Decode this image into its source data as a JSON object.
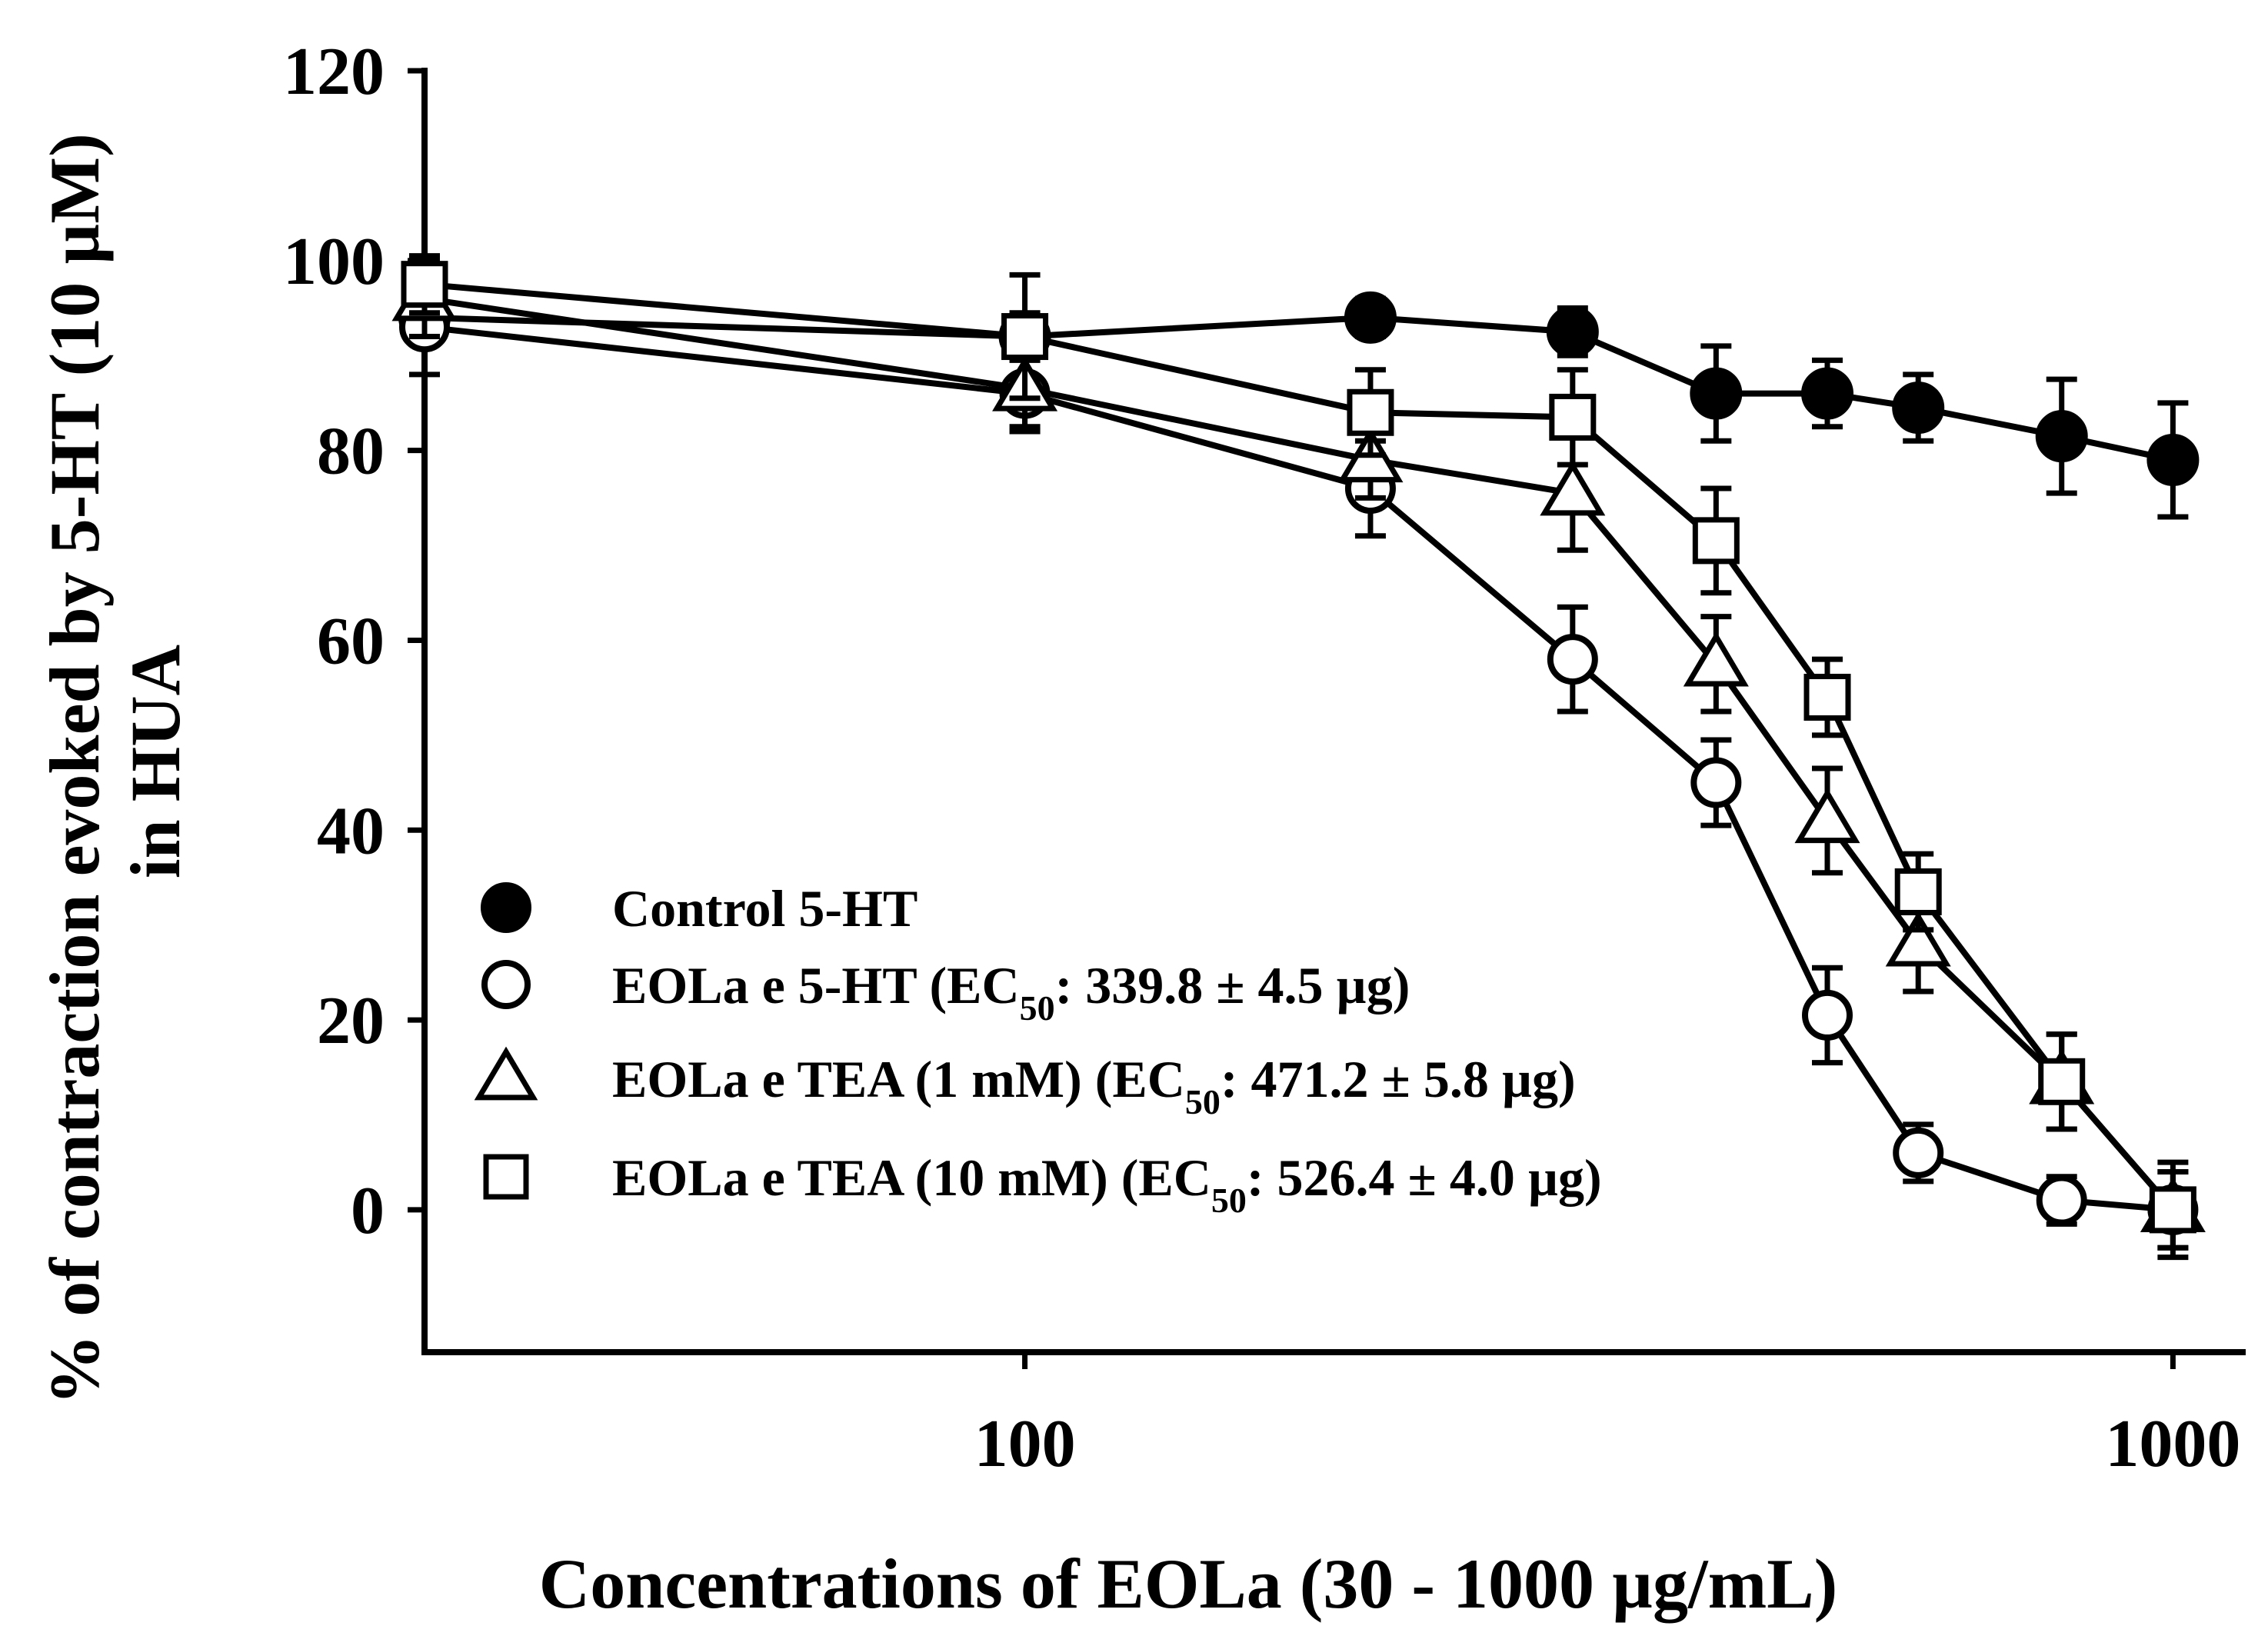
{
  "chart_data": {
    "type": "line",
    "xscale": "log",
    "xlabel": "Concentrations of EOLa (30 - 1000 µg/mL)",
    "ylabel_line1": "% of contraction evoked by 5-HT (10 µM)",
    "ylabel_line2": "in HUA",
    "xlim": [
      30,
      1150
    ],
    "ylim": [
      -15,
      120
    ],
    "xticks": [
      100,
      1000
    ],
    "xtick_labels": [
      "100",
      "1000"
    ],
    "yticks": [
      0,
      20,
      40,
      60,
      80,
      100,
      120
    ],
    "ytick_labels": [
      "0",
      "20",
      "40",
      "60",
      "80",
      "100",
      "120"
    ],
    "legend_position": "lower-left",
    "series": [
      {
        "name": "Control 5-HT",
        "legend": {
          "text": "Control 5-HT",
          "sub": "",
          "tail": ""
        },
        "marker": "filled-circle",
        "x": [
          30,
          100,
          200,
          300,
          400,
          500,
          600,
          800,
          1000
        ],
        "y": [
          94,
          92,
          94,
          92.5,
          86,
          86,
          84.5,
          81.5,
          79
        ],
        "err": [
          2.5,
          2.5,
          2,
          2.5,
          5,
          3.5,
          3.5,
          6,
          6
        ]
      },
      {
        "name": "EOLa e 5-HT (EC50: 339.8 ± 4.5 µg)",
        "legend": {
          "text": "EOLa e 5-HT (EC",
          "sub": "50",
          "tail": ": 339.8 ± 4.5 µg)"
        },
        "marker": "open-circle",
        "x": [
          30,
          100,
          200,
          300,
          400,
          500,
          600,
          800,
          1000
        ],
        "y": [
          93,
          86,
          76,
          58,
          45,
          20.5,
          6,
          1,
          0
        ],
        "err": [
          5,
          4,
          5,
          5.5,
          4.5,
          5,
          3,
          2.5,
          4
        ]
      },
      {
        "name": "EOLa e TEA (1 mM) (EC50: 471.2 ± 5.8 µg)",
        "legend": {
          "text": "EOLa e TEA (1 mM) (EC",
          "sub": "50",
          "tail": ": 471.2 ± 5.8 µg)"
        },
        "marker": "open-triangle",
        "x": [
          30,
          100,
          200,
          300,
          400,
          500,
          600,
          800,
          1000
        ],
        "y": [
          96,
          86.5,
          79,
          75.5,
          57.5,
          41,
          28,
          13.5,
          0
        ],
        "err": [
          4,
          4,
          4,
          6,
          5,
          5.5,
          5,
          5,
          4
        ]
      },
      {
        "name": "EOLa e TEA (10 mM) (EC50: 526.4 ± 4.0 µg)",
        "legend": {
          "text": "EOLa e TEA (10 mM) (EC",
          "sub": "50",
          "tail": ": 526.4 ± 4.0 µg)"
        },
        "marker": "open-square",
        "x": [
          30,
          100,
          200,
          300,
          400,
          500,
          600,
          800,
          1000
        ],
        "y": [
          97.5,
          92,
          84,
          83.5,
          70.5,
          54,
          33.5,
          13.5,
          0
        ],
        "err": [
          3,
          6.5,
          4.5,
          5,
          5.5,
          4,
          4,
          5,
          5
        ]
      }
    ]
  }
}
